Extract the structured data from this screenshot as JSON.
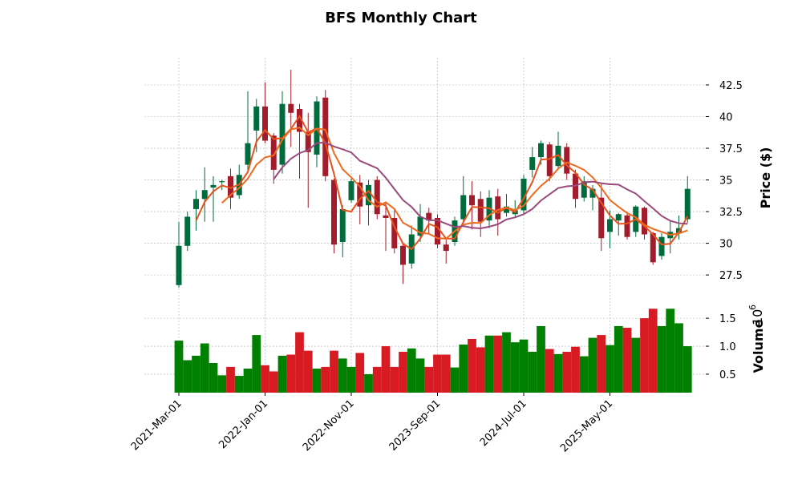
{
  "chart_data": {
    "type": "candlestick",
    "title": "BFS Monthly Chart",
    "ylabel": "Price ($)",
    "volume_label": "Volume",
    "volume_multiplier": {
      "base": "10",
      "exponent": "6"
    },
    "categories": [
      "2021-Mar-01",
      null,
      null,
      null,
      null,
      null,
      null,
      null,
      null,
      null,
      "2022-Jan-01",
      null,
      null,
      null,
      null,
      null,
      null,
      null,
      null,
      null,
      "2022-Nov-01",
      null,
      null,
      null,
      null,
      null,
      null,
      null,
      null,
      null,
      "2023-Sep-01",
      null,
      null,
      null,
      null,
      null,
      null,
      null,
      null,
      null,
      "2024-Jul-01",
      null,
      null,
      null,
      null,
      null,
      null,
      null,
      null,
      null,
      "2025-May-01",
      null,
      null,
      null,
      null,
      null,
      null,
      null,
      null,
      null
    ],
    "open": [
      26.7,
      29.8,
      32.7,
      33.5,
      34.4,
      34.9,
      35.3,
      33.8,
      36.2,
      38.9,
      40.8,
      38.5,
      36.2,
      41.0,
      40.6,
      38.8,
      37.0,
      41.5,
      35.0,
      30.1,
      33.4,
      34.8,
      33.0,
      35.0,
      32.2,
      32.0,
      29.8,
      28.4,
      30.6,
      32.4,
      32.0,
      29.9,
      30.1,
      31.9,
      33.8,
      33.5,
      31.8,
      33.7,
      32.4,
      32.3,
      32.6,
      35.8,
      36.8,
      37.8,
      36.1,
      37.6,
      35.5,
      33.6,
      33.6,
      33.6,
      30.9,
      31.8,
      32.2,
      30.9,
      32.8,
      30.8,
      29.0,
      30.4,
      30.8,
      31.9
    ],
    "high": [
      31.7,
      32.5,
      34.2,
      36.0,
      35.3,
      35.0,
      35.9,
      36.2,
      42.0,
      41.4,
      42.7,
      38.7,
      42.0,
      43.7,
      41.0,
      40.3,
      41.6,
      42.1,
      35.1,
      33.0,
      35.1,
      35.4,
      35.0,
      35.3,
      33.3,
      32.6,
      30.0,
      31.4,
      33.1,
      32.8,
      32.3,
      30.3,
      32.1,
      35.3,
      34.9,
      34.1,
      34.2,
      34.3,
      33.9,
      33.4,
      35.4,
      37.6,
      38.1,
      38.0,
      38.8,
      37.9,
      35.8,
      35.3,
      34.6,
      34.7,
      32.6,
      32.4,
      32.5,
      33.0,
      32.9,
      30.9,
      30.8,
      31.8,
      32.2,
      35.3
    ],
    "low": [
      26.5,
      29.4,
      31.0,
      31.7,
      31.7,
      34.2,
      32.7,
      33.5,
      35.6,
      37.2,
      37.9,
      34.7,
      35.5,
      37.6,
      35.1,
      32.8,
      36.0,
      34.9,
      29.2,
      28.9,
      33.2,
      31.5,
      31.4,
      31.9,
      29.4,
      29.2,
      26.8,
      28.0,
      30.1,
      30.8,
      29.6,
      28.4,
      29.8,
      31.7,
      31.1,
      30.5,
      31.2,
      30.6,
      32.1,
      32.0,
      32.3,
      35.2,
      36.2,
      34.9,
      35.8,
      35.0,
      32.8,
      33.3,
      32.6,
      29.4,
      29.6,
      30.6,
      30.3,
      30.5,
      30.3,
      28.3,
      28.7,
      29.2,
      30.3,
      31.6
    ],
    "close": [
      29.8,
      32.1,
      33.5,
      34.2,
      34.6,
      34.9,
      33.6,
      35.4,
      37.9,
      40.8,
      38.1,
      35.8,
      41.0,
      40.3,
      38.8,
      37.2,
      41.2,
      35.3,
      29.9,
      32.7,
      34.9,
      32.9,
      34.6,
      32.3,
      32.0,
      29.6,
      28.3,
      30.7,
      32.1,
      31.8,
      29.9,
      29.4,
      31.8,
      33.8,
      33.0,
      31.7,
      33.6,
      31.9,
      32.9,
      32.6,
      35.1,
      36.8,
      37.9,
      35.3,
      37.7,
      35.5,
      33.5,
      34.9,
      34.3,
      30.4,
      31.9,
      32.3,
      30.5,
      32.9,
      30.7,
      28.5,
      30.5,
      30.9,
      31.2,
      34.3
    ],
    "volume": [
      1.1,
      0.75,
      0.83,
      1.05,
      0.7,
      0.48,
      0.63,
      0.47,
      0.6,
      1.2,
      0.66,
      0.55,
      0.83,
      0.85,
      1.25,
      0.92,
      0.6,
      0.63,
      0.92,
      0.78,
      0.63,
      0.88,
      0.5,
      0.63,
      1.0,
      0.63,
      0.9,
      0.96,
      0.78,
      0.63,
      0.85,
      0.85,
      0.62,
      1.03,
      1.13,
      0.98,
      1.19,
      1.19,
      1.25,
      1.07,
      1.12,
      0.9,
      1.36,
      0.95,
      0.86,
      0.9,
      0.99,
      0.82,
      1.15,
      1.2,
      1.02,
      1.36,
      1.33,
      1.15,
      1.5,
      1.67,
      1.36,
      1.67,
      1.41,
      1.0
    ],
    "mav": [
      {
        "period": 3,
        "color": "#e8521c"
      },
      {
        "period": 6,
        "color": "#f06a1e"
      },
      {
        "period": 12,
        "color": "#9b4a7c"
      }
    ],
    "up_color": "#006b3c",
    "down_color": "#a21d2b",
    "volume_up_color": "#007f00",
    "volume_down_color": "#d81a22",
    "ylim": [
      25.8,
      44.65
    ],
    "yticks": [
      27.5,
      30,
      32.5,
      35,
      37.5,
      40,
      42.5
    ],
    "y2lim": [
      0.17,
      1.86
    ],
    "y2ticks": [
      0.5,
      {
        "value": 1,
        "label": "1.0"
      },
      1.5
    ],
    "grid": true
  }
}
